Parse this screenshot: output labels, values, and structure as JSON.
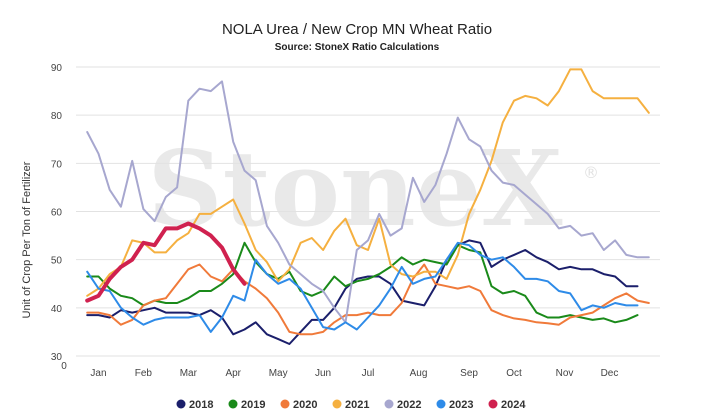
{
  "chart_data": {
    "type": "line",
    "title": "NOLA Urea / New Crop MN Wheat Ratio",
    "subtitle": "Source: StoneX Ratio Calculations",
    "ylabel": "Unit of Crop Per Ton of Fertilizer",
    "xlabel": "",
    "watermark": "StoneX",
    "watermark_mark": "®",
    "ylim": [
      30,
      90
    ],
    "yticks": [
      "30",
      "40",
      "50",
      "60",
      "70",
      "80",
      "90"
    ],
    "xlim": [
      0,
      52
    ],
    "zero_label": "0",
    "grid": true,
    "legend_position": "bottom",
    "months": [
      {
        "label": "Jan",
        "x": 2
      },
      {
        "label": "Feb",
        "x": 6
      },
      {
        "label": "Mar",
        "x": 10
      },
      {
        "label": "Apr",
        "x": 14
      },
      {
        "label": "May",
        "x": 18
      },
      {
        "label": "Jun",
        "x": 22
      },
      {
        "label": "Jul",
        "x": 26
      },
      {
        "label": "Aug",
        "x": 30.5
      },
      {
        "label": "Sep",
        "x": 35
      },
      {
        "label": "Oct",
        "x": 39
      },
      {
        "label": "Nov",
        "x": 43.5
      },
      {
        "label": "Dec",
        "x": 47.5
      }
    ],
    "series": [
      {
        "name": "2018",
        "color": "#1b1f6b",
        "width": 2,
        "x": [
          1,
          2,
          3,
          4,
          5,
          6,
          7,
          8,
          9,
          10,
          11,
          12,
          13,
          14,
          15,
          16,
          17,
          18,
          19,
          20,
          21,
          22,
          23,
          24,
          25,
          26,
          27,
          28,
          29,
          30,
          31,
          32,
          33,
          34,
          35,
          36,
          37,
          38,
          39,
          40,
          41,
          42,
          43,
          44,
          45,
          46,
          47,
          48,
          49,
          50
        ],
        "values": [
          38.5,
          38.5,
          38.0,
          39.5,
          39.0,
          39.5,
          40.0,
          39.0,
          39.0,
          39.0,
          38.5,
          39.5,
          38.0,
          34.5,
          35.5,
          37.0,
          34.5,
          33.5,
          32.5,
          35.0,
          37.5,
          37.5,
          40.0,
          44.0,
          46.0,
          46.5,
          46.5,
          45.0,
          41.5,
          41.0,
          40.5,
          44.5,
          50.0,
          53.0,
          54.0,
          53.5,
          48.5,
          50.0,
          51.0,
          52.0,
          50.5,
          49.5,
          48.0,
          48.5,
          48.0,
          48.0,
          47.0,
          46.5,
          44.5,
          44.5
        ]
      },
      {
        "name": "2019",
        "color": "#1a8a1a",
        "width": 2,
        "x": [
          1,
          2,
          3,
          4,
          5,
          6,
          7,
          8,
          9,
          10,
          11,
          12,
          13,
          14,
          15,
          16,
          17,
          18,
          19,
          20,
          21,
          22,
          23,
          24,
          25,
          26,
          27,
          28,
          29,
          30,
          31,
          32,
          33,
          34,
          35,
          36,
          37,
          38,
          39,
          40,
          41,
          42,
          43,
          44,
          45,
          46,
          47,
          48,
          49,
          50
        ],
        "values": [
          46.5,
          46.5,
          44.0,
          42.5,
          42.0,
          40.5,
          41.5,
          41.0,
          41.0,
          42.0,
          43.5,
          43.5,
          45.0,
          47.0,
          53.5,
          49.5,
          47.0,
          46.0,
          47.5,
          43.5,
          42.5,
          43.5,
          46.5,
          44.5,
          45.5,
          46.0,
          47.0,
          48.5,
          50.5,
          49.0,
          50.0,
          49.5,
          49.0,
          53.0,
          52.0,
          51.5,
          44.5,
          43.0,
          43.5,
          42.5,
          39.0,
          38.0,
          38.0,
          38.5,
          38.0,
          37.5,
          37.8,
          37.0,
          37.5,
          38.5
        ]
      },
      {
        "name": "2020",
        "color": "#f07a3a",
        "width": 2,
        "x": [
          1,
          2,
          3,
          4,
          5,
          6,
          7,
          8,
          9,
          10,
          11,
          12,
          13,
          14,
          15,
          16,
          17,
          18,
          19,
          20,
          21,
          22,
          23,
          24,
          25,
          26,
          27,
          28,
          29,
          30,
          31,
          32,
          33,
          34,
          35,
          36,
          37,
          38,
          39,
          40,
          41,
          42,
          43,
          44,
          45,
          46,
          47,
          48,
          49,
          50,
          51
        ],
        "values": [
          39.0,
          39.0,
          38.5,
          36.5,
          37.5,
          40.5,
          41.5,
          42.0,
          45.0,
          48.0,
          49.0,
          46.5,
          45.5,
          48.0,
          45.5,
          44.0,
          42.0,
          39.0,
          35.0,
          34.5,
          34.5,
          35.0,
          37.0,
          38.5,
          38.5,
          39.0,
          38.5,
          38.5,
          41.0,
          46.0,
          49.0,
          45.0,
          44.5,
          44.0,
          44.5,
          43.5,
          39.5,
          38.5,
          37.8,
          37.5,
          37.0,
          36.8,
          36.5,
          38.0,
          38.5,
          39.0,
          40.5,
          42.0,
          43.0,
          41.5,
          41.0
        ]
      },
      {
        "name": "2021",
        "color": "#f5b040",
        "width": 2,
        "x": [
          1,
          2,
          3,
          4,
          5,
          6,
          7,
          8,
          9,
          10,
          11,
          12,
          13,
          14,
          15,
          16,
          17,
          18,
          19,
          20,
          21,
          22,
          23,
          24,
          25,
          26,
          27,
          28,
          29,
          30,
          31,
          32,
          33,
          34,
          35,
          36,
          37,
          38,
          39,
          40,
          41,
          42,
          43,
          44,
          45,
          46,
          47,
          48,
          49,
          50,
          51
        ],
        "values": [
          42.5,
          44.0,
          47.0,
          48.5,
          54.0,
          53.5,
          51.5,
          51.5,
          54.0,
          55.5,
          59.5,
          59.5,
          61.0,
          62.5,
          57.5,
          52.0,
          49.5,
          45.5,
          48.0,
          53.5,
          54.5,
          52.0,
          56.0,
          58.5,
          53.0,
          52.0,
          58.5,
          49.0,
          47.0,
          46.5,
          47.5,
          47.5,
          46.0,
          51.0,
          59.5,
          64.5,
          70.5,
          78.5,
          83.0,
          84.0,
          83.5,
          82.0,
          85.0,
          89.5,
          89.5,
          85.0,
          83.5,
          83.5,
          83.5,
          83.5,
          80.5
        ]
      },
      {
        "name": "2022",
        "color": "#a7a7cf",
        "width": 2,
        "x": [
          1,
          2,
          3,
          4,
          5,
          6,
          7,
          8,
          9,
          10,
          11,
          12,
          13,
          14,
          15,
          16,
          17,
          18,
          19,
          20,
          21,
          22,
          23,
          24,
          25,
          26,
          27,
          28,
          29,
          30,
          31,
          32,
          33,
          34,
          35,
          36,
          37,
          38,
          39,
          40,
          41,
          42,
          43,
          44,
          45,
          46,
          47,
          48,
          49,
          50,
          51
        ],
        "values": [
          76.5,
          72.0,
          64.5,
          61.0,
          70.5,
          60.5,
          58.0,
          63.0,
          65.0,
          83.0,
          85.5,
          85.0,
          87.0,
          74.5,
          68.5,
          66.5,
          57.0,
          53.5,
          49.0,
          47.0,
          45.0,
          43.5,
          40.0,
          37.0,
          52.0,
          54.0,
          59.5,
          55.0,
          56.5,
          67.0,
          62.0,
          65.5,
          72.0,
          79.5,
          75.0,
          73.5,
          68.5,
          66.0,
          65.5,
          63.5,
          61.5,
          59.5,
          56.5,
          57.0,
          55.0,
          55.5,
          52.0,
          54.0,
          51.0,
          50.5,
          50.5
        ]
      },
      {
        "name": "2023",
        "color": "#2e8be8",
        "width": 2,
        "x": [
          1,
          2,
          3,
          4,
          5,
          6,
          7,
          8,
          9,
          10,
          11,
          12,
          13,
          14,
          15,
          16,
          17,
          18,
          19,
          20,
          21,
          22,
          23,
          24,
          25,
          26,
          27,
          28,
          29,
          30,
          31,
          32,
          33,
          34,
          35,
          36,
          37,
          38,
          39,
          40,
          41,
          42,
          43,
          44,
          45,
          46,
          47,
          48,
          49,
          50
        ],
        "values": [
          47.5,
          44.0,
          43.5,
          40.0,
          38.0,
          36.5,
          37.5,
          38.0,
          38.0,
          38.0,
          38.5,
          35.0,
          38.0,
          42.5,
          41.5,
          50.0,
          47.0,
          45.0,
          46.0,
          44.0,
          40.0,
          36.0,
          35.5,
          37.0,
          35.5,
          38.0,
          40.5,
          44.0,
          48.5,
          45.0,
          46.0,
          46.5,
          50.0,
          53.5,
          53.0,
          51.0,
          50.0,
          50.5,
          48.5,
          46.0,
          46.0,
          45.5,
          43.5,
          43.0,
          39.5,
          40.5,
          40.0,
          41.0,
          40.5,
          40.5
        ]
      },
      {
        "name": "2024",
        "color": "#d0214f",
        "width": 4,
        "x": [
          1,
          2,
          3,
          4,
          5,
          6,
          7,
          8,
          9,
          10,
          11,
          12,
          13,
          14,
          15
        ],
        "values": [
          41.5,
          42.5,
          46.0,
          48.5,
          50.0,
          53.5,
          53.0,
          56.5,
          56.5,
          57.5,
          56.5,
          55.0,
          52.5,
          48.0,
          45.0
        ]
      }
    ]
  }
}
